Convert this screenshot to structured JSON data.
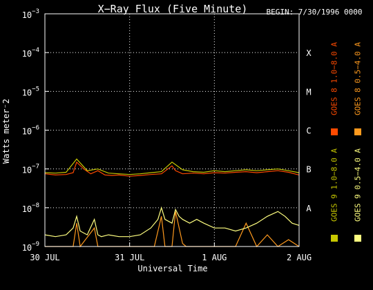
{
  "chart_data": {
    "type": "line",
    "title": "X−Ray Flux (Five Minute)",
    "begin_label": "BEGIN: 7/30/1996 0000",
    "xlabel": "Universal Time",
    "ylabel": "Watts meter⁻2",
    "y_scale": "log",
    "ylim": [
      1e-09,
      0.001
    ],
    "xlim": [
      "1996-07-30T00:00",
      "1996-08-02T00:00"
    ],
    "x_ticks": [
      {
        "t": "1996-07-30T00:00",
        "label": "30 JUL"
      },
      {
        "t": "1996-07-31T00:00",
        "label": "31 JUL"
      },
      {
        "t": "1996-08-01T00:00",
        "label": "1 AUG"
      },
      {
        "t": "1996-08-02T00:00",
        "label": "2 AUG"
      }
    ],
    "y_ticks": [
      {
        "v": 0.001,
        "base": "10",
        "exp": "−3"
      },
      {
        "v": 0.0001,
        "base": "10",
        "exp": "−4"
      },
      {
        "v": 1e-05,
        "base": "10",
        "exp": "−5"
      },
      {
        "v": 1e-06,
        "base": "10",
        "exp": "−6"
      },
      {
        "v": 1e-07,
        "base": "10",
        "exp": "−7"
      },
      {
        "v": 1e-08,
        "base": "10",
        "exp": "−8"
      },
      {
        "v": 1e-09,
        "base": "10",
        "exp": "−9"
      }
    ],
    "flare_classes": [
      {
        "label": "X",
        "v": 0.0001
      },
      {
        "label": "M",
        "v": 1e-05
      },
      {
        "label": "C",
        "v": 1e-06
      },
      {
        "label": "B",
        "v": 1e-07
      },
      {
        "label": "A",
        "v": 1e-08
      }
    ],
    "grid": true,
    "legend_position": "right, vertical",
    "series": [
      {
        "name": "GOES 8 1.0−8.0 A",
        "color": "#ff4a00",
        "x": [
          "1996-07-30T00:00",
          "1996-07-30T03:00",
          "1996-07-30T06:00",
          "1996-07-30T08:00",
          "1996-07-30T09:00",
          "1996-07-30T11:00",
          "1996-07-30T13:00",
          "1996-07-30T15:00",
          "1996-07-30T17:00",
          "1996-07-30T19:00",
          "1996-07-30T21:00",
          "1996-07-31T00:00",
          "1996-07-31T03:00",
          "1996-07-31T06:00",
          "1996-07-31T09:00",
          "1996-07-31T12:00",
          "1996-07-31T13:00",
          "1996-07-31T15:00",
          "1996-07-31T18:00",
          "1996-07-31T21:00",
          "1996-08-01T00:00",
          "1996-08-01T03:00",
          "1996-08-01T06:00",
          "1996-08-01T09:00",
          "1996-08-01T12:00",
          "1996-08-01T15:00",
          "1996-08-01T18:00",
          "1996-08-01T21:00",
          "1996-08-02T00:00"
        ],
        "values": [
          7.5e-08,
          7e-08,
          7.2e-08,
          8e-08,
          1.5e-07,
          1e-07,
          7.5e-08,
          9e-08,
          7e-08,
          6.8e-08,
          7e-08,
          6.5e-08,
          6.8e-08,
          7.2e-08,
          7.5e-08,
          1.2e-07,
          9e-08,
          7.5e-08,
          7.8e-08,
          7.5e-08,
          8e-08,
          7.8e-08,
          8.2e-08,
          8.5e-08,
          8e-08,
          8.5e-08,
          9e-08,
          8.2e-08,
          7e-08
        ]
      },
      {
        "name": "GOES 8 0.5−4.0 A",
        "color": "#ff9a1e",
        "x": [
          "1996-07-30T00:00",
          "1996-07-30T08:00",
          "1996-07-30T09:00",
          "1996-07-30T10:00",
          "1996-07-30T14:00",
          "1996-07-30T15:00",
          "1996-07-31T00:00",
          "1996-07-31T07:00",
          "1996-07-31T09:00",
          "1996-07-31T10:00",
          "1996-07-31T12:00",
          "1996-07-31T13:00",
          "1996-07-31T15:00",
          "1996-07-31T16:00",
          "1996-07-31T20:00",
          "1996-08-01T00:00",
          "1996-08-01T06:00",
          "1996-08-01T09:00",
          "1996-08-01T12:00",
          "1996-08-01T15:00",
          "1996-08-01T18:00",
          "1996-08-01T21:00",
          "1996-08-02T00:00"
        ],
        "values": [
          1e-09,
          1e-09,
          4e-09,
          1e-09,
          3e-09,
          1e-09,
          1e-09,
          1e-09,
          6e-09,
          1e-09,
          1e-09,
          8e-09,
          1.2e-09,
          1e-09,
          1e-09,
          1e-09,
          1e-09,
          4e-09,
          1e-09,
          2e-09,
          1e-09,
          1.5e-09,
          1e-09
        ]
      },
      {
        "name": "GOES 9 1.0−8.0 A",
        "color": "#c8c800",
        "x": [
          "1996-07-30T00:00",
          "1996-07-30T03:00",
          "1996-07-30T06:00",
          "1996-07-30T09:00",
          "1996-07-30T12:00",
          "1996-07-30T15:00",
          "1996-07-30T18:00",
          "1996-07-30T21:00",
          "1996-07-31T00:00",
          "1996-07-31T03:00",
          "1996-07-31T06:00",
          "1996-07-31T09:00",
          "1996-07-31T12:00",
          "1996-07-31T15:00",
          "1996-07-31T18:00",
          "1996-07-31T21:00",
          "1996-08-01T00:00",
          "1996-08-01T03:00",
          "1996-08-01T06:00",
          "1996-08-01T09:00",
          "1996-08-01T12:00",
          "1996-08-01T15:00",
          "1996-08-01T18:00",
          "1996-08-01T21:00",
          "1996-08-02T00:00"
        ],
        "values": [
          8e-08,
          7.8e-08,
          8.2e-08,
          1.8e-07,
          9e-08,
          1e-07,
          7.8e-08,
          7.5e-08,
          7.2e-08,
          7.5e-08,
          8e-08,
          8.5e-08,
          1.5e-07,
          9.5e-08,
          8.5e-08,
          8.2e-08,
          9e-08,
          8.5e-08,
          9e-08,
          9.5e-08,
          9e-08,
          9.5e-08,
          1e-07,
          9e-08,
          8e-08
        ]
      },
      {
        "name": "GOES 9 0.5−4.0 A",
        "color": "#ffff80",
        "x": [
          "1996-07-30T00:00",
          "1996-07-30T03:00",
          "1996-07-30T06:00",
          "1996-07-30T08:00",
          "1996-07-30T09:00",
          "1996-07-30T10:00",
          "1996-07-30T12:00",
          "1996-07-30T14:00",
          "1996-07-30T15:00",
          "1996-07-30T16:00",
          "1996-07-30T18:00",
          "1996-07-30T21:00",
          "1996-07-31T00:00",
          "1996-07-31T03:00",
          "1996-07-31T06:00",
          "1996-07-31T08:00",
          "1996-07-31T09:00",
          "1996-07-31T10:00",
          "1996-07-31T12:00",
          "1996-07-31T13:00",
          "1996-07-31T14:00",
          "1996-07-31T15:00",
          "1996-07-31T17:00",
          "1996-07-31T19:00",
          "1996-07-31T21:00",
          "1996-08-01T00:00",
          "1996-08-01T03:00",
          "1996-08-01T06:00",
          "1996-08-01T09:00",
          "1996-08-01T12:00",
          "1996-08-01T15:00",
          "1996-08-01T18:00",
          "1996-08-01T20:00",
          "1996-08-01T22:00",
          "1996-08-02T00:00"
        ],
        "values": [
          2e-09,
          1.8e-09,
          2e-09,
          3e-09,
          6e-09,
          2.5e-09,
          2e-09,
          5e-09,
          2e-09,
          1.8e-09,
          2e-09,
          1.8e-09,
          1.8e-09,
          2e-09,
          3e-09,
          5e-09,
          1e-08,
          5e-09,
          4e-09,
          9e-09,
          6e-09,
          5e-09,
          4e-09,
          5e-09,
          4e-09,
          3e-09,
          3e-09,
          2.5e-09,
          3e-09,
          4e-09,
          6e-09,
          8e-09,
          6e-09,
          4e-09,
          3.5e-09
        ]
      }
    ]
  }
}
